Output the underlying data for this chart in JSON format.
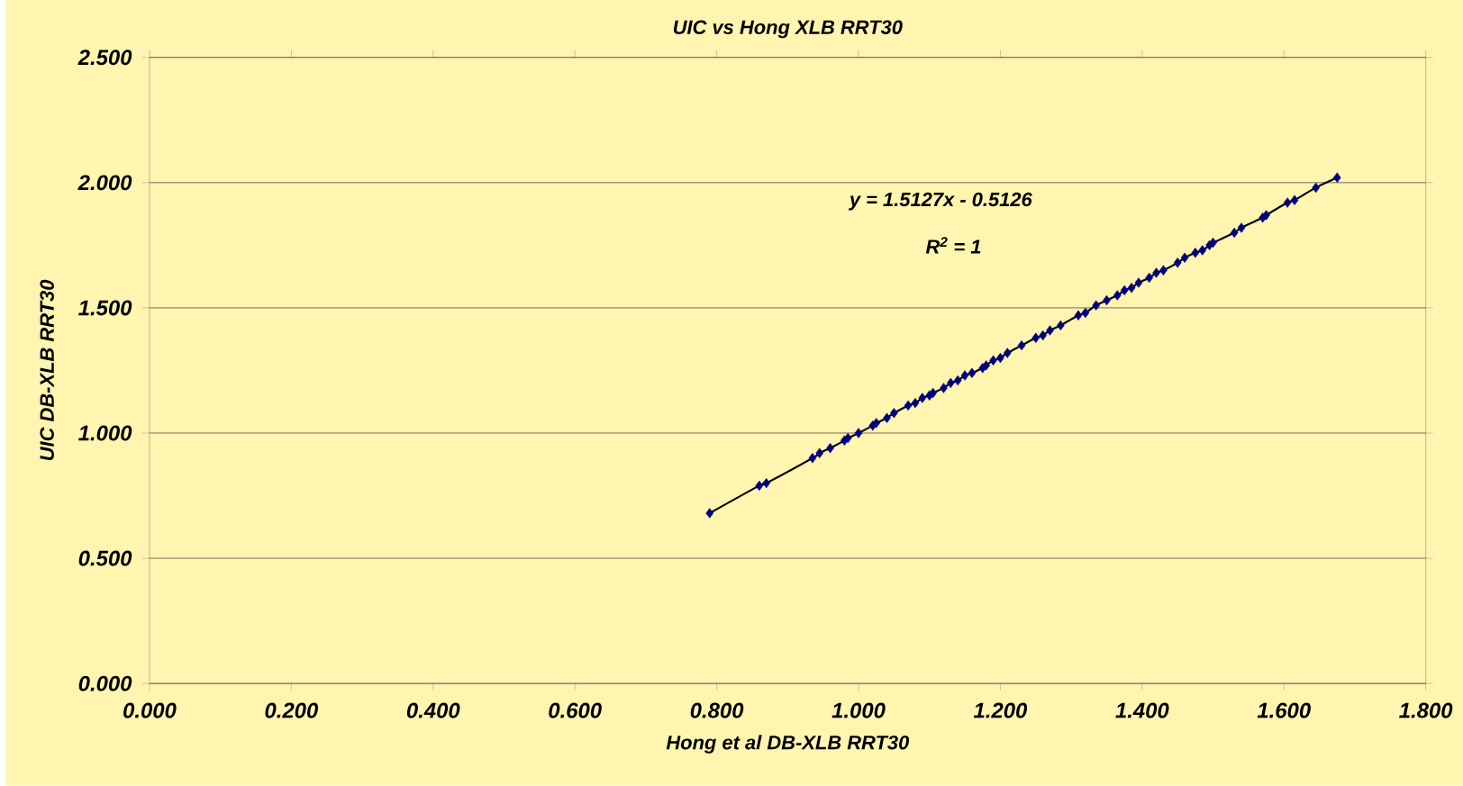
{
  "chart_data": {
    "type": "scatter",
    "title": "UIC vs Hong XLB RRT30",
    "xlabel": "Hong et al DB-XLB RRT30",
    "ylabel": "UIC DB-XLB RRT30",
    "annotations": [
      "y = 1.5127x - 0.5126",
      "R$^{2}$ = 1"
    ],
    "x": [
      0.79,
      0.86,
      0.87,
      0.935,
      0.945,
      0.96,
      0.98,
      0.985,
      1.0,
      1.02,
      1.025,
      1.04,
      1.05,
      1.07,
      1.08,
      1.09,
      1.1,
      1.105,
      1.12,
      1.13,
      1.14,
      1.15,
      1.16,
      1.175,
      1.18,
      1.19,
      1.2,
      1.21,
      1.23,
      1.25,
      1.26,
      1.27,
      1.285,
      1.31,
      1.32,
      1.335,
      1.35,
      1.365,
      1.375,
      1.385,
      1.395,
      1.41,
      1.42,
      1.43,
      1.45,
      1.46,
      1.475,
      1.485,
      1.495,
      1.5,
      1.53,
      1.54,
      1.57,
      1.575,
      1.605,
      1.615,
      1.645,
      1.675
    ],
    "series": [
      {
        "color": "#000080",
        "values": [
          0.68,
          0.79,
          0.8,
          0.9,
          0.92,
          0.94,
          0.97,
          0.98,
          1.0,
          1.03,
          1.04,
          1.06,
          1.08,
          1.11,
          1.12,
          1.14,
          1.15,
          1.16,
          1.18,
          1.2,
          1.21,
          1.23,
          1.24,
          1.26,
          1.27,
          1.29,
          1.3,
          1.32,
          1.35,
          1.38,
          1.39,
          1.41,
          1.43,
          1.47,
          1.48,
          1.51,
          1.53,
          1.55,
          1.57,
          1.58,
          1.6,
          1.62,
          1.64,
          1.65,
          1.68,
          1.7,
          1.72,
          1.73,
          1.75,
          1.76,
          1.8,
          1.82,
          1.86,
          1.87,
          1.92,
          1.93,
          1.98,
          2.02
        ]
      },
      {
        "type": "line",
        "marker": "none",
        "color": "#000000",
        "values": [
          0.68,
          0.79,
          0.8,
          0.9,
          0.92,
          0.94,
          0.97,
          0.98,
          1.0,
          1.03,
          1.04,
          1.06,
          1.08,
          1.11,
          1.12,
          1.14,
          1.15,
          1.16,
          1.18,
          1.2,
          1.21,
          1.23,
          1.24,
          1.26,
          1.27,
          1.29,
          1.3,
          1.32,
          1.35,
          1.38,
          1.39,
          1.41,
          1.43,
          1.47,
          1.48,
          1.51,
          1.53,
          1.55,
          1.57,
          1.58,
          1.6,
          1.62,
          1.64,
          1.65,
          1.68,
          1.7,
          1.72,
          1.73,
          1.75,
          1.76,
          1.8,
          1.82,
          1.86,
          1.87,
          1.92,
          1.93,
          1.98,
          2.02
        ]
      }
    ],
    "marker": "diamond",
    "line_style": "solid",
    "grid": "y",
    "xlim": [
      0,
      1.8
    ],
    "ylim": [
      0,
      2.5
    ],
    "xticks": [
      {
        "value": 0,
        "label": "0.000"
      },
      {
        "value": 0.2,
        "label": "0.200"
      },
      {
        "value": 0.4,
        "label": "0.400"
      },
      {
        "value": 0.6,
        "label": "0.600"
      },
      {
        "value": 0.8,
        "label": "0.800"
      },
      {
        "value": 1.0,
        "label": "1.000"
      },
      {
        "value": 1.2,
        "label": "1.200"
      },
      {
        "value": 1.4,
        "label": "1.400"
      },
      {
        "value": 1.6,
        "label": "1.600"
      },
      {
        "value": 1.8,
        "label": "1.800"
      }
    ],
    "yticks": [
      {
        "value": 0,
        "label": "0.000"
      },
      {
        "value": 0.5,
        "label": "0.500"
      },
      {
        "value": 1.0,
        "label": "1.000"
      },
      {
        "value": 1.5,
        "label": "1.500"
      },
      {
        "value": 2.0,
        "label": "2.000"
      },
      {
        "value": 2.5,
        "label": "2.500"
      }
    ]
  }
}
